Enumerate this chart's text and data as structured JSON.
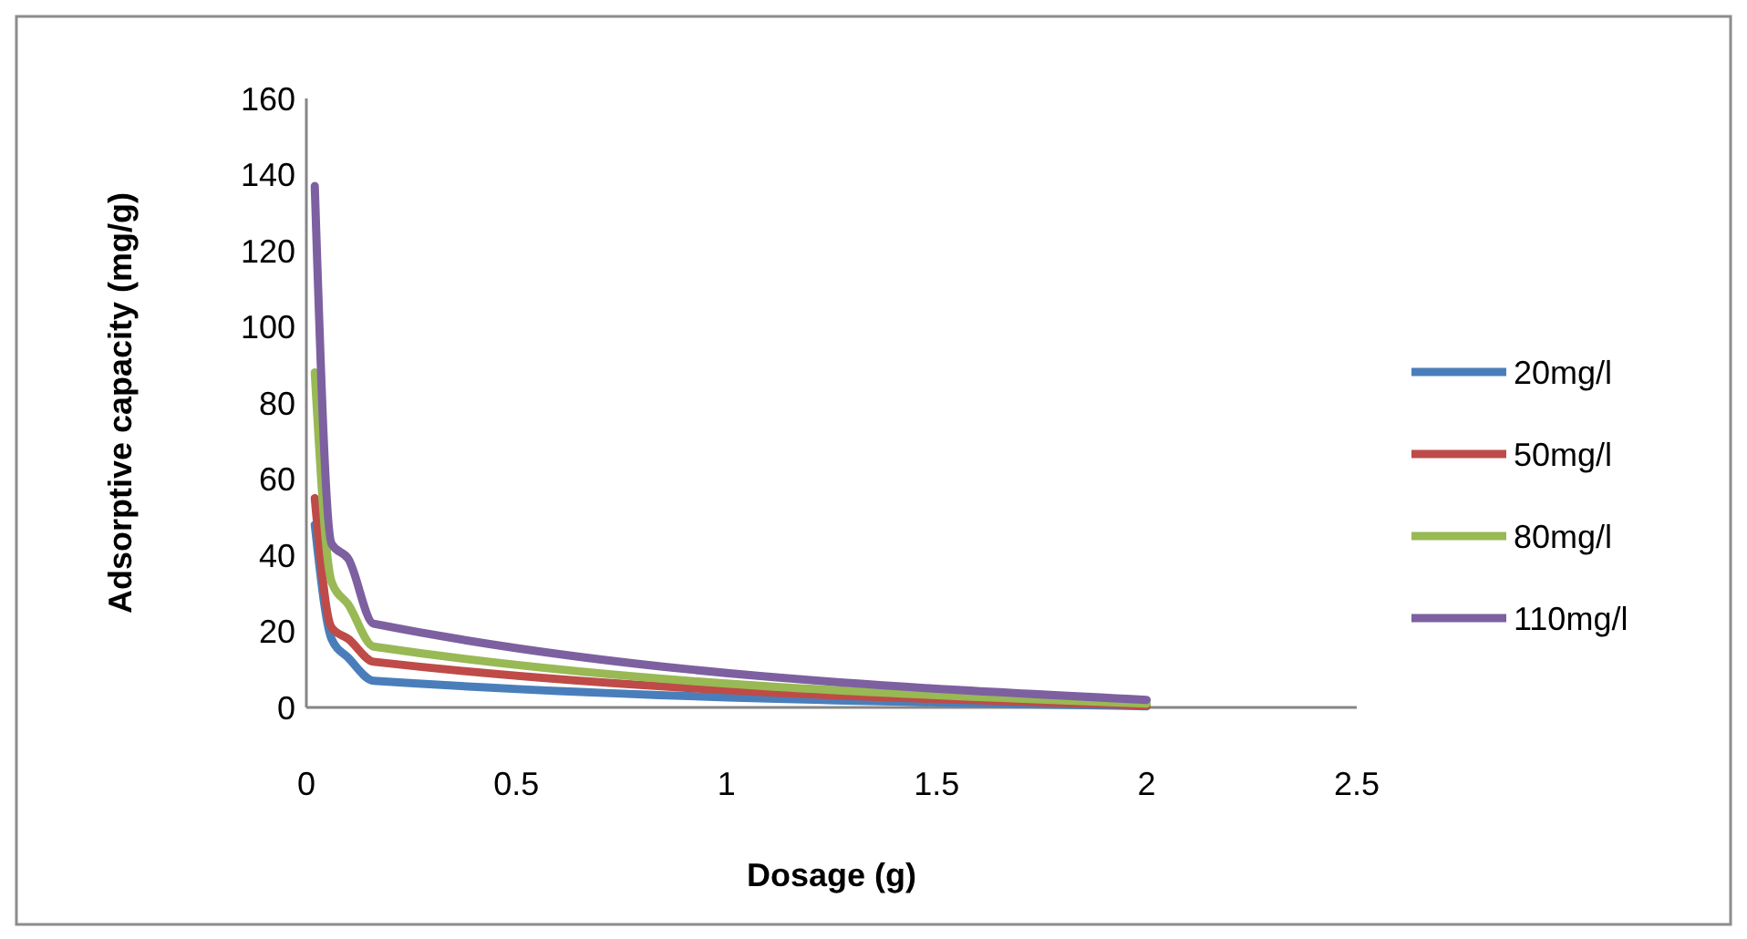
{
  "chart_data": {
    "type": "line",
    "xlabel": "Dosage (g)",
    "ylabel": "Adsorptive capacity (mg/g)",
    "x": [
      0.02,
      0.06,
      0.1,
      0.16,
      2
    ],
    "series": [
      {
        "name": "20mg/l",
        "color": "#4a7ebb",
        "values": [
          48,
          18,
          13,
          7,
          0.3
        ]
      },
      {
        "name": "50mg/l",
        "color": "#be4b48",
        "values": [
          55,
          21,
          18,
          12,
          0.5
        ]
      },
      {
        "name": "80mg/l",
        "color": "#98b954",
        "values": [
          88,
          33,
          27,
          16,
          1
        ]
      },
      {
        "name": "110mg/l",
        "color": "#7d60a0",
        "values": [
          137,
          43,
          39,
          22,
          2
        ]
      }
    ],
    "xlim": [
      0,
      2.5
    ],
    "xticks": [
      0,
      0.5,
      1,
      1.5,
      2,
      2.5
    ],
    "ylim": [
      0,
      160
    ],
    "yticks": [
      0,
      20,
      40,
      60,
      80,
      100,
      120,
      140,
      160
    ],
    "grid": false,
    "legend": "right",
    "marker": "none",
    "line_style": "solid"
  }
}
